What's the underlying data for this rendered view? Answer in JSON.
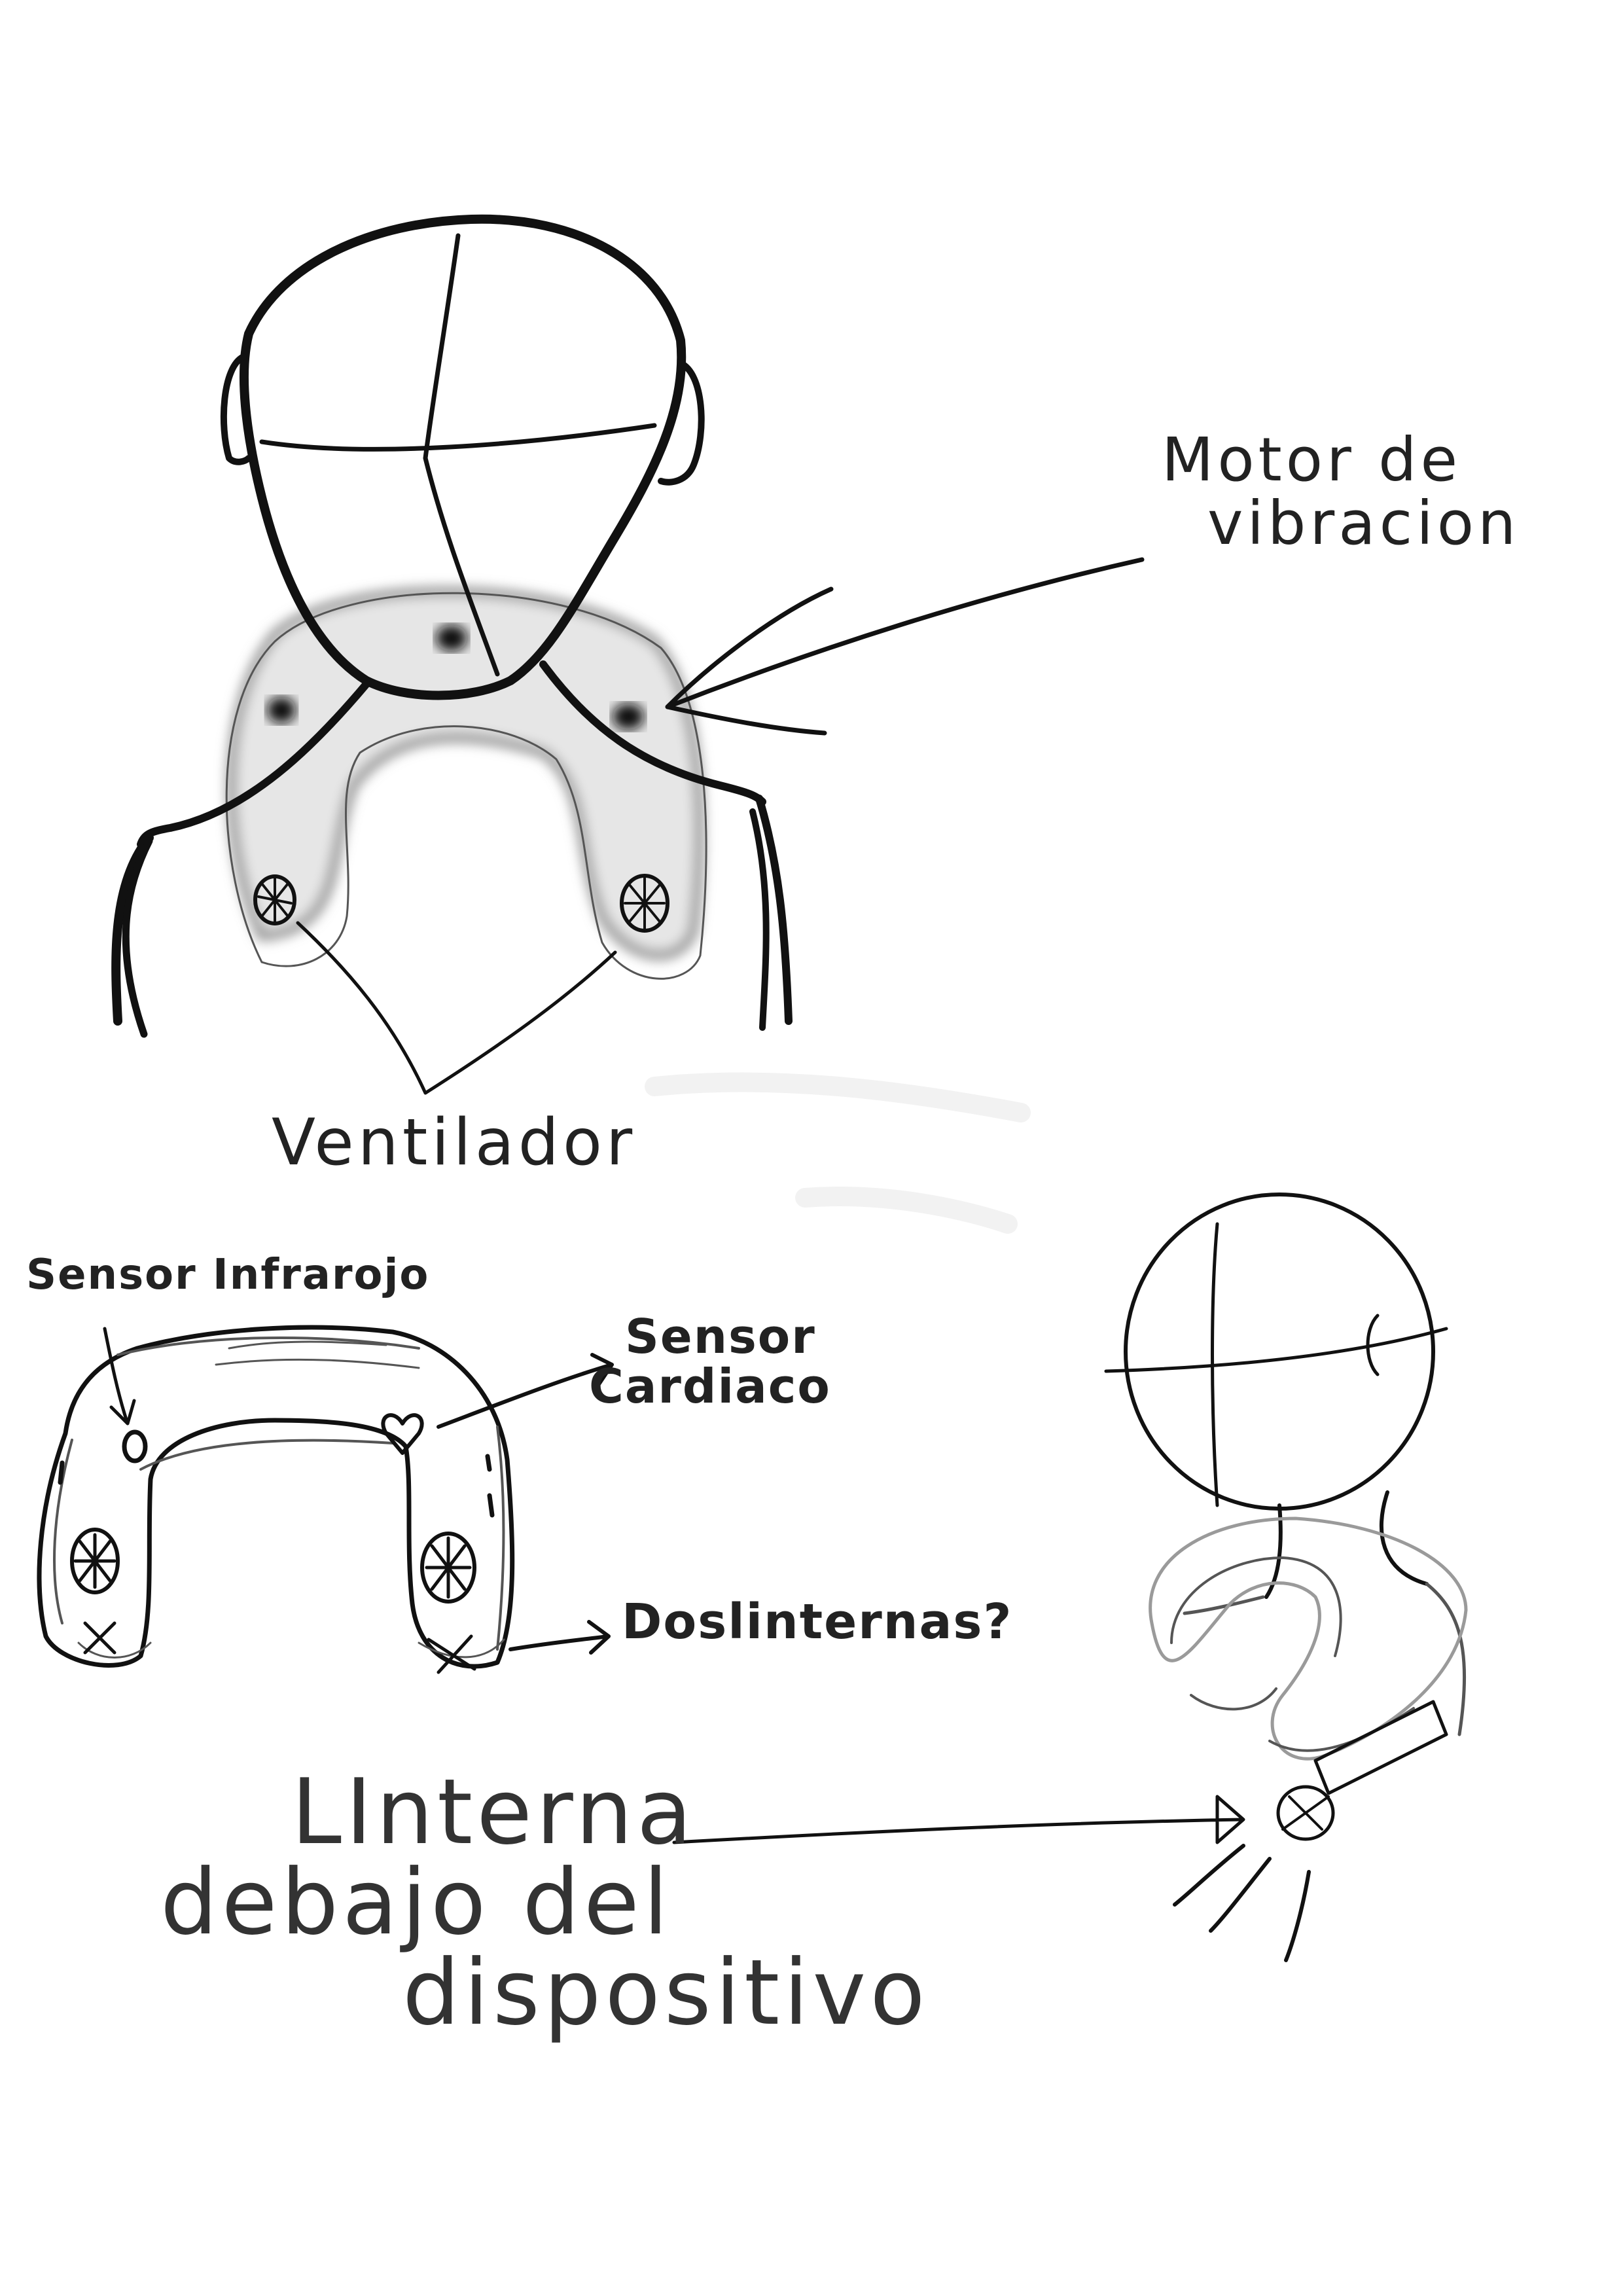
{
  "labels": {
    "motor": [
      "Motor de",
      "vibracion"
    ],
    "ventilador": "Ventilador",
    "sensor_infrarrojo": "Sensor Infrarojo",
    "sensor_cardiaco": [
      "Sensor",
      "Cardiaco"
    ],
    "dos_linternas": "Doslinternas?",
    "linterna_debajo": [
      "LInterna",
      "debajo del",
      "dispositivo"
    ]
  },
  "colors": {
    "ink": "#111111",
    "pencil": "#555555",
    "smudge": "#9a9a9a",
    "background": "#ffffff"
  }
}
